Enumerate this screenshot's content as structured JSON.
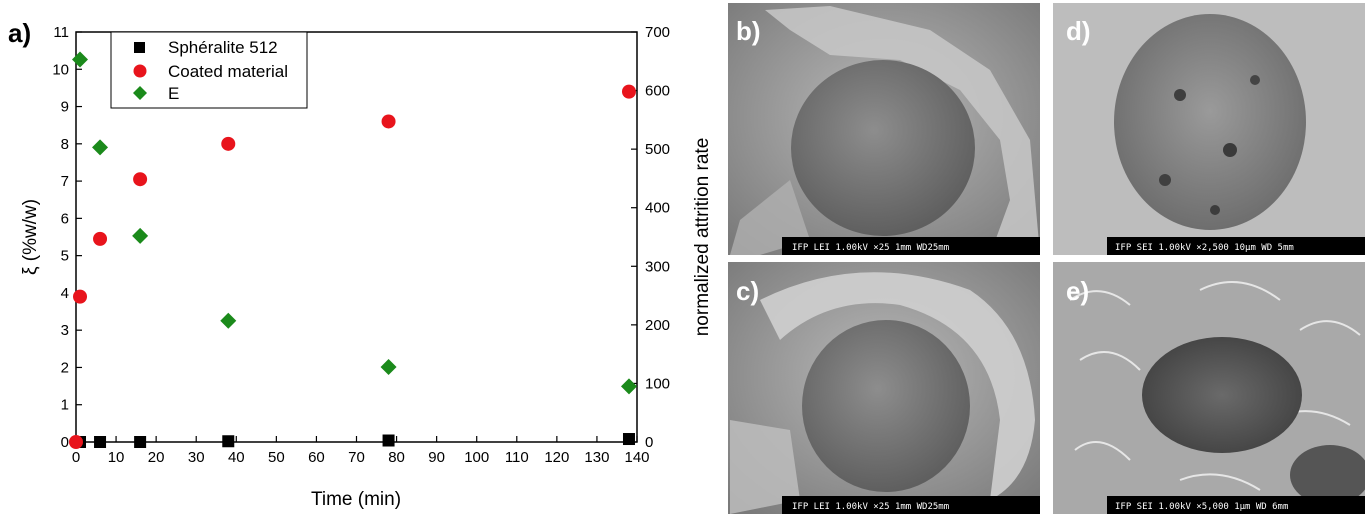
{
  "panel_a_label": "a)",
  "chart_data": {
    "type": "scatter",
    "xlabel": "Time (min)",
    "ylabel": "ξ (%w/w)",
    "y2label": "normalized attrition rate",
    "xlim": [
      0,
      140
    ],
    "ylim": [
      0,
      11
    ],
    "y2lim": [
      0,
      700
    ],
    "x_ticks": [
      0,
      10,
      20,
      30,
      40,
      50,
      60,
      70,
      80,
      90,
      100,
      110,
      120,
      130,
      140
    ],
    "y_ticks": [
      0,
      1,
      2,
      3,
      4,
      5,
      6,
      7,
      8,
      9,
      10,
      11
    ],
    "y2_ticks": [
      0,
      100,
      200,
      300,
      400,
      500,
      600,
      700
    ],
    "legend_position": "top-left",
    "grid": false,
    "series": [
      {
        "name": "Sphéralite 512",
        "marker": "square",
        "color": "#000000",
        "axis": "left",
        "x": [
          1,
          6,
          16,
          38,
          78,
          138
        ],
        "y": [
          0,
          0,
          0,
          0.02,
          0.04,
          0.08
        ]
      },
      {
        "name": "Coated material",
        "marker": "circle",
        "color": "#e8141c",
        "axis": "left",
        "x": [
          0,
          1,
          6,
          16,
          38,
          78,
          138
        ],
        "y": [
          0,
          3.9,
          5.45,
          7.05,
          8.0,
          8.6,
          9.4
        ]
      },
      {
        "name": "E",
        "marker": "diamond",
        "color": "#1b8a1b",
        "axis": "right",
        "x": [
          1,
          6,
          16,
          38,
          78,
          138
        ],
        "y": [
          653,
          503,
          352,
          207,
          128,
          95
        ]
      }
    ]
  },
  "micrographs": [
    {
      "label": "b)",
      "bar": "IFP LEI 1.00kV  ×25   1mm WD25mm"
    },
    {
      "label": "c)",
      "bar": "IFP LEI 1.00kV  ×25   1mm WD25mm"
    },
    {
      "label": "d)",
      "bar": "IFP SEI 1.00kV ×2,500  10μm WD 5mm"
    },
    {
      "label": "e)",
      "bar": "IFP SEI 1.00kV ×5,000  1μm WD 6mm"
    }
  ]
}
